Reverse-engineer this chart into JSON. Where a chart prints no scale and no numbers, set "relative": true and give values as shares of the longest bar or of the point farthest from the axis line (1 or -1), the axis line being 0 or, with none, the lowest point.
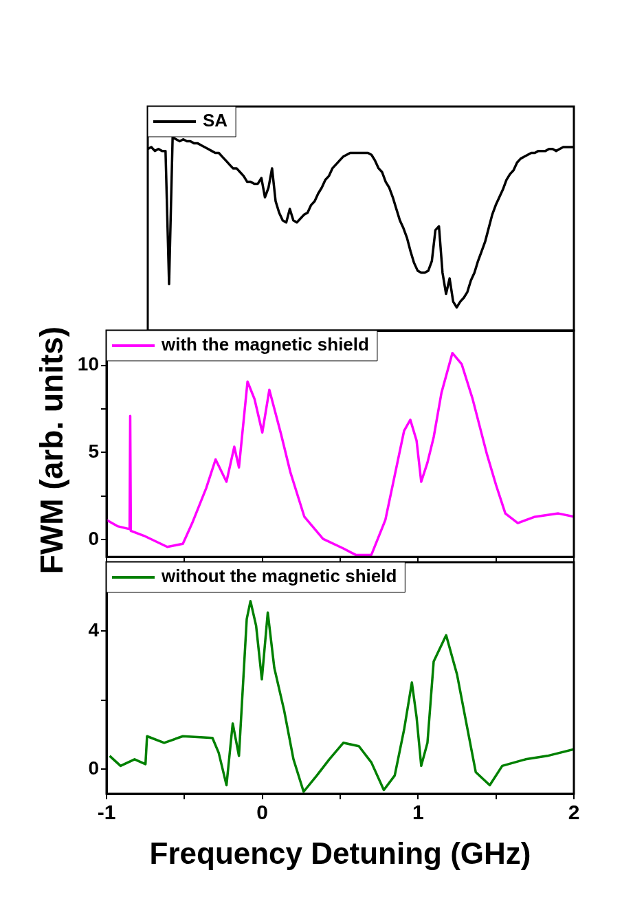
{
  "chart_data": [
    {
      "type": "line",
      "relative": true,
      "tick_labels": false,
      "legend": "top left",
      "categories": [
        null,
        null,
        null,
        null,
        null,
        null,
        null,
        null,
        null,
        null,
        null,
        null,
        null,
        null,
        null,
        null,
        null,
        null,
        null,
        null,
        null,
        null,
        null,
        null,
        null,
        null,
        null,
        null,
        null,
        null,
        null,
        null,
        null,
        null,
        null,
        null,
        null,
        null,
        null,
        null,
        null,
        null,
        null,
        null,
        null,
        null,
        null,
        null,
        null,
        null,
        null,
        null,
        null,
        null,
        null,
        null,
        null,
        null,
        null,
        null,
        null,
        null,
        null,
        null,
        null,
        null,
        null,
        null,
        null,
        null,
        null,
        null,
        null,
        null,
        null,
        null,
        null,
        null,
        null,
        null,
        null,
        null,
        null,
        null,
        null,
        null,
        null,
        null,
        null,
        null,
        null,
        null,
        null,
        null,
        null,
        null,
        null,
        null,
        null,
        null,
        null,
        null,
        null,
        null,
        null,
        null,
        null,
        null,
        null,
        null,
        null,
        null,
        null,
        null,
        null,
        null,
        null,
        null,
        null,
        null,
        null
      ],
      "series": [
        {
          "name": "SA",
          "color": "#000000",
          "values": [
            0.94,
            0.95,
            0.93,
            0.94,
            0.93,
            0.93,
            0.24,
            1.0,
            0.99,
            0.98,
            0.99,
            0.98,
            0.98,
            0.97,
            0.97,
            0.96,
            0.95,
            0.94,
            0.93,
            0.92,
            0.92,
            0.9,
            0.88,
            0.86,
            0.84,
            0.84,
            0.82,
            0.8,
            0.77,
            0.77,
            0.76,
            0.76,
            0.79,
            0.69,
            0.74,
            0.84,
            0.67,
            0.61,
            0.57,
            0.56,
            0.63,
            0.57,
            0.56,
            0.58,
            0.6,
            0.61,
            0.65,
            0.67,
            0.71,
            0.74,
            0.78,
            0.8,
            0.84,
            0.86,
            0.88,
            0.9,
            0.91,
            0.92,
            0.92,
            0.92,
            0.92,
            0.92,
            0.92,
            0.91,
            0.88,
            0.84,
            0.82,
            0.77,
            0.74,
            0.69,
            0.63,
            0.57,
            0.53,
            0.48,
            0.41,
            0.35,
            0.31,
            0.3,
            0.3,
            0.31,
            0.36,
            0.52,
            0.54,
            0.3,
            0.19,
            0.27,
            0.15,
            0.12,
            0.15,
            0.17,
            0.2,
            0.26,
            0.3,
            0.36,
            0.41,
            0.46,
            0.53,
            0.6,
            0.65,
            0.69,
            0.73,
            0.78,
            0.81,
            0.83,
            0.87,
            0.89,
            0.9,
            0.91,
            0.92,
            0.92,
            0.93,
            0.93,
            0.93,
            0.94,
            0.94,
            0.93,
            0.94,
            0.95,
            0.95,
            0.95,
            0.95
          ]
        }
      ]
    },
    {
      "type": "line",
      "tick_labels": "y",
      "legend": "top left",
      "ylabel": "FWM (arb. units)",
      "xlim": [
        -1,
        2
      ],
      "xticks": [
        -1,
        {
          "value": -0.5,
          "label": null
        },
        0,
        {
          "value": 0.5,
          "label": null
        },
        1,
        {
          "value": 1.5,
          "label": null
        },
        2
      ],
      "ylim": [
        -0.99,
        12
      ],
      "yticks": [
        0,
        {
          "value": 2.5,
          "label": null
        },
        5,
        {
          "value": 7.5,
          "label": null
        },
        10
      ],
      "x": [
        -1,
        -0.93,
        -0.852,
        -0.848,
        -0.844,
        -0.76,
        -0.61,
        -0.51,
        -0.45,
        -0.36,
        -0.3,
        -0.23,
        -0.18,
        -0.15,
        -0.095,
        -0.05,
        0,
        0.045,
        0.12,
        0.18,
        0.27,
        0.39,
        0.52,
        0.6,
        0.7,
        0.79,
        0.85,
        0.91,
        0.95,
        0.99,
        1.02,
        1.06,
        1.1,
        1.15,
        1.22,
        1.28,
        1.35,
        1.44,
        1.5,
        1.56,
        1.64,
        1.75,
        1.9,
        2.0
      ],
      "series": [
        {
          "name": "with the magnetic shield",
          "color": "#ff00ff",
          "values": [
            1.13,
            0.77,
            0.6,
            7.1,
            0.5,
            0.22,
            -0.42,
            -0.24,
            0.95,
            2.96,
            4.6,
            3.32,
            5.33,
            4.14,
            9.07,
            8.07,
            6.15,
            8.6,
            6.06,
            3.87,
            1.31,
            0.04,
            -0.51,
            -0.88,
            -0.88,
            1.13,
            3.69,
            6.24,
            6.88,
            5.69,
            3.32,
            4.42,
            5.88,
            8.43,
            10.71,
            10.07,
            8.07,
            4.96,
            3.14,
            1.5,
            0.95,
            1.31,
            1.5,
            1.31
          ]
        }
      ]
    },
    {
      "type": "line",
      "legend": "top left",
      "xlabel": "Frequency Detuning (GHz)",
      "xlim": [
        -1,
        2
      ],
      "xticks": [
        -1,
        {
          "value": -0.5,
          "label": null
        },
        0,
        {
          "value": 0.5,
          "label": null
        },
        1,
        {
          "value": 1.5,
          "label": null
        },
        2
      ],
      "ylim": [
        -0.72,
        6
      ],
      "yticks": [
        0,
        {
          "value": 2,
          "label": null
        },
        4
      ],
      "x": [
        -0.98,
        -0.91,
        -0.82,
        -0.75,
        -0.74,
        -0.63,
        -0.51,
        -0.32,
        -0.28,
        -0.23,
        -0.19,
        -0.15,
        -0.1,
        -0.076,
        -0.04,
        -0.003,
        0.035,
        0.077,
        0.14,
        0.2,
        0.265,
        0.35,
        0.43,
        0.52,
        0.62,
        0.7,
        0.78,
        0.85,
        0.91,
        0.96,
        0.99,
        1.02,
        1.06,
        1.1,
        1.18,
        1.25,
        1.31,
        1.37,
        1.46,
        1.54,
        1.69,
        1.83,
        2.0
      ],
      "series": [
        {
          "name": "without the magnetic shield",
          "color": "#008000",
          "values": [
            0.38,
            0.09,
            0.28,
            0.14,
            0.95,
            0.76,
            0.95,
            0.9,
            0.47,
            -0.47,
            1.32,
            0.38,
            4.35,
            4.87,
            4.16,
            2.6,
            4.54,
            2.93,
            1.7,
            0.28,
            -0.66,
            -0.19,
            0.28,
            0.76,
            0.66,
            0.19,
            -0.61,
            -0.19,
            1.14,
            2.51,
            1.51,
            0.09,
            0.76,
            3.12,
            3.88,
            2.74,
            1.32,
            -0.09,
            -0.47,
            0.09,
            0.28,
            0.38,
            0.57
          ]
        }
      ]
    }
  ]
}
